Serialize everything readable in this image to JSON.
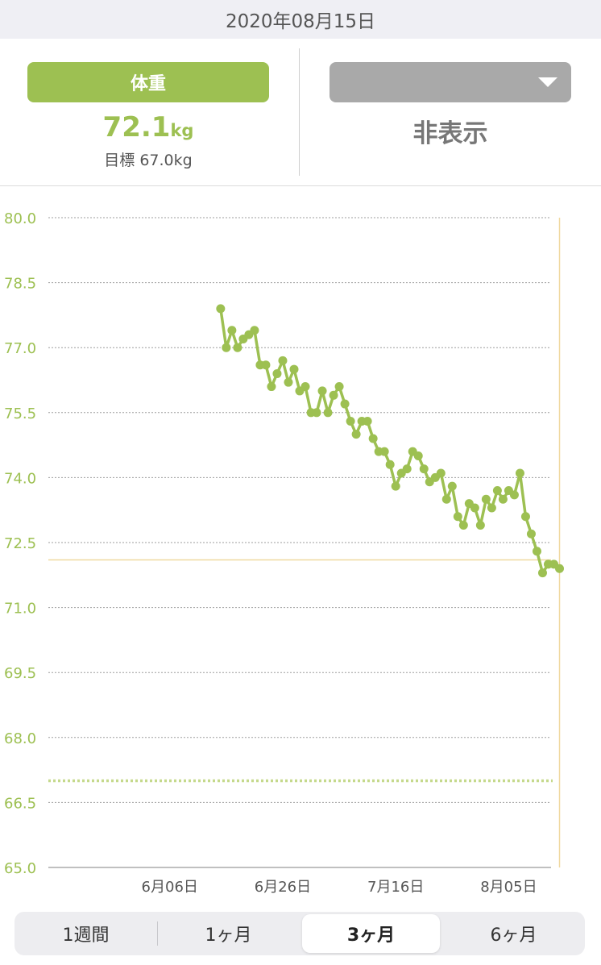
{
  "header": {
    "date": "2020年08月15日"
  },
  "summary": {
    "primary_button": "体重",
    "primary_value": "72.1",
    "primary_unit": "kg",
    "goal_text": "目標 67.0kg",
    "secondary_text": "非表示"
  },
  "chart_data": {
    "type": "line",
    "y_ticks": [
      "80.0",
      "78.5",
      "77.0",
      "75.5",
      "74.0",
      "72.5",
      "71.0",
      "69.5",
      "68.0",
      "66.5",
      "65.0"
    ],
    "ylim": [
      65.0,
      80.0
    ],
    "x_ticks": [
      "6月06日",
      "6月26日",
      "7月16日",
      "8月05日"
    ],
    "x_tick_days": [
      6,
      26,
      46,
      66
    ],
    "xlim": [
      -15.5,
      73.5
    ],
    "goal_value": 67.0,
    "current_value": 72.1,
    "series": [
      {
        "x": [
          15,
          16,
          17,
          18,
          19,
          20,
          21,
          22,
          23,
          24,
          25,
          26,
          27,
          28,
          29,
          30,
          31,
          32,
          33,
          34,
          35,
          36,
          37,
          38,
          39,
          40,
          41,
          42,
          43,
          44,
          45,
          46,
          47,
          48,
          49,
          50,
          51,
          52,
          53,
          54,
          55,
          56,
          57,
          58,
          59,
          60,
          61,
          62,
          63,
          64,
          65,
          66,
          67,
          68,
          69,
          70,
          71,
          72,
          73,
          74,
          75
        ],
        "values": [
          77.9,
          77.0,
          77.4,
          77.0,
          77.2,
          77.3,
          77.4,
          76.6,
          76.6,
          76.1,
          76.4,
          76.7,
          76.2,
          76.5,
          76.0,
          76.1,
          75.5,
          75.5,
          76.0,
          75.5,
          75.9,
          76.1,
          75.7,
          75.3,
          75.0,
          75.3,
          75.3,
          74.9,
          74.6,
          74.6,
          74.3,
          73.8,
          74.1,
          74.2,
          74.6,
          74.5,
          74.2,
          73.9,
          74.0,
          74.1,
          73.5,
          73.8,
          73.1,
          72.9,
          73.4,
          73.3,
          72.9,
          73.5,
          73.3,
          73.7,
          73.5,
          73.7,
          73.6,
          74.1,
          73.1,
          72.7,
          72.3,
          71.8,
          72.0,
          72.0,
          71.9
        ]
      }
    ],
    "colors": {
      "line": "#9dc052",
      "goal": "#c5d98c",
      "cursor": "#f0d9a0",
      "tick_label": "#9dc052"
    }
  },
  "segment": {
    "items": [
      "1週間",
      "1ヶ月",
      "3ヶ月",
      "6ヶ月"
    ],
    "active_index": 2
  }
}
